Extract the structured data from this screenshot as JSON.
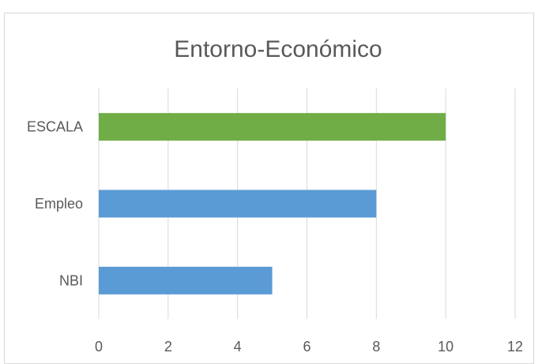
{
  "chart_data": {
    "type": "bar",
    "orientation": "horizontal",
    "title": "Entorno-Económico",
    "categories": [
      "NBI",
      "Empleo",
      "ESCALA"
    ],
    "values": [
      5,
      8,
      10
    ],
    "bar_colors": [
      "#5b9bd5",
      "#5b9bd5",
      "#70ad47"
    ],
    "xlim": [
      0,
      12
    ],
    "xticks": [
      "0",
      "2",
      "4",
      "6",
      "8",
      "10",
      "12"
    ],
    "grid": "vertical",
    "legend": "none"
  }
}
